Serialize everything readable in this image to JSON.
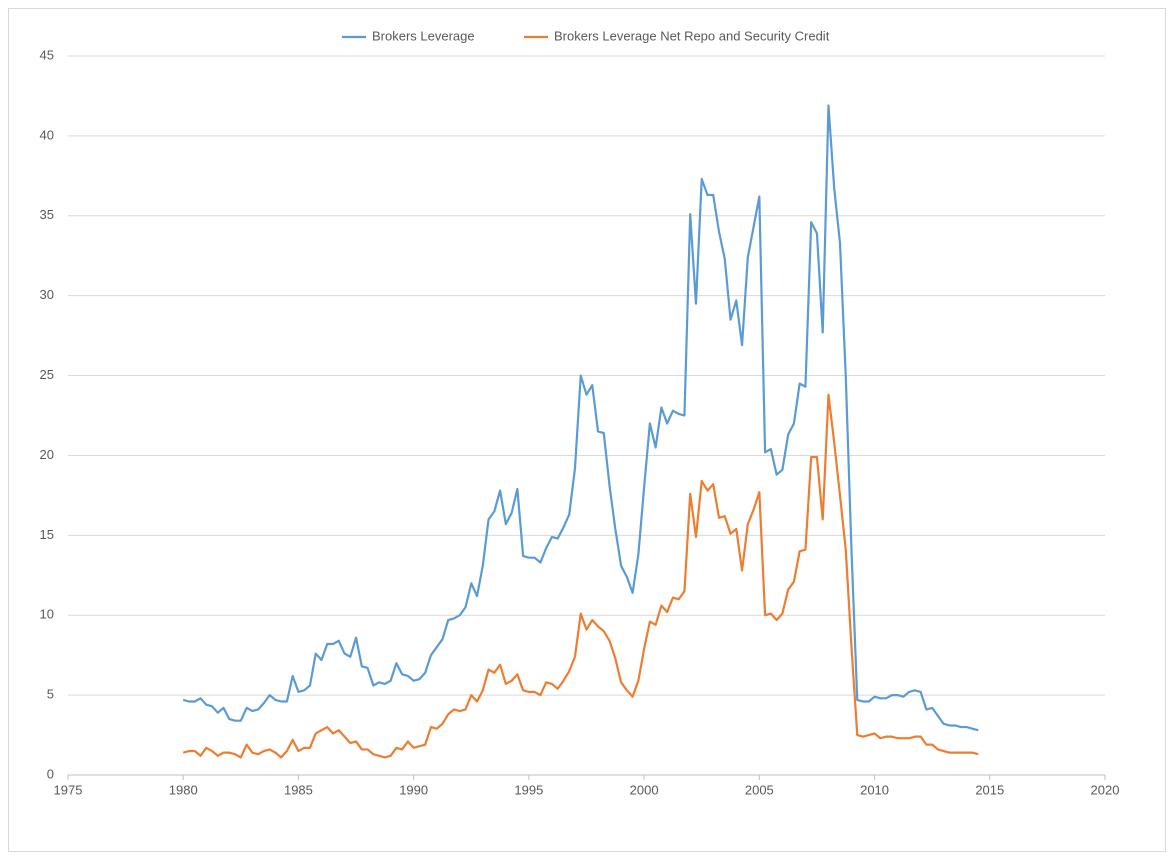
{
  "chart_data": {
    "type": "line",
    "x": [
      1980,
      1980.25,
      1980.5,
      1980.75,
      1981,
      1981.25,
      1981.5,
      1981.75,
      1982,
      1982.25,
      1982.5,
      1982.75,
      1983,
      1983.25,
      1983.5,
      1983.75,
      1984,
      1984.25,
      1984.5,
      1984.75,
      1985,
      1985.25,
      1985.5,
      1985.75,
      1986,
      1986.25,
      1986.5,
      1986.75,
      1987,
      1987.25,
      1987.5,
      1987.75,
      1988,
      1988.25,
      1988.5,
      1988.75,
      1989,
      1989.25,
      1989.5,
      1989.75,
      1990,
      1990.25,
      1990.5,
      1990.75,
      1991,
      1991.25,
      1991.5,
      1991.75,
      1992,
      1992.25,
      1992.5,
      1992.75,
      1993,
      1993.25,
      1993.5,
      1993.75,
      1994,
      1994.25,
      1994.5,
      1994.75,
      1995,
      1995.25,
      1995.5,
      1995.75,
      1996,
      1996.25,
      1996.5,
      1996.75,
      1997,
      1997.25,
      1997.5,
      1997.75,
      1998,
      1998.25,
      1998.5,
      1998.75,
      1999,
      1999.25,
      1999.5,
      1999.75,
      2000,
      2000.25,
      2000.5,
      2000.75,
      2001,
      2001.25,
      2001.5,
      2001.75,
      2002,
      2002.25,
      2002.5,
      2002.75,
      2003,
      2003.25,
      2003.5,
      2003.75,
      2004,
      2004.25,
      2004.5,
      2004.75,
      2005,
      2005.25,
      2005.5,
      2005.75,
      2006,
      2006.25,
      2006.5,
      2006.75,
      2007,
      2007.25,
      2007.5,
      2007.75,
      2008,
      2008.25,
      2008.5,
      2008.75,
      2009,
      2009.25,
      2009.5,
      2009.75,
      2010,
      2010.25,
      2010.5,
      2010.75,
      2011,
      2011.25,
      2011.5,
      2011.75,
      2012,
      2012.25,
      2012.5,
      2012.75,
      2013,
      2013.25,
      2013.5,
      2013.75,
      2014,
      2014.25,
      2014.5
    ],
    "series": [
      {
        "name": "Brokers Leverage",
        "color": "#5b9bd5",
        "values": [
          4.7,
          4.6,
          4.6,
          4.8,
          4.4,
          4.3,
          3.9,
          4.2,
          3.5,
          3.4,
          3.4,
          4.2,
          4.0,
          4.1,
          4.5,
          5.0,
          4.7,
          4.6,
          4.6,
          6.2,
          5.2,
          5.3,
          5.6,
          7.6,
          7.2,
          8.2,
          8.2,
          8.4,
          7.6,
          7.4,
          8.6,
          6.8,
          6.7,
          5.6,
          5.8,
          5.7,
          5.9,
          7.0,
          6.3,
          6.2,
          5.9,
          6.0,
          6.4,
          7.5,
          8.0,
          8.5,
          9.7,
          9.8,
          10.0,
          10.5,
          12.0,
          11.2,
          13.1,
          16.0,
          16.5,
          17.8,
          15.7,
          16.4,
          17.9,
          13.7,
          13.6,
          13.6,
          13.3,
          14.2,
          14.9,
          14.8,
          15.5,
          16.3,
          19.2,
          25.0,
          23.8,
          24.4,
          21.5,
          21.4,
          18.1,
          15.4,
          13.1,
          12.4,
          11.4,
          13.8,
          18.0,
          22.0,
          20.5,
          23.0,
          22.0,
          22.8,
          22.6,
          22.5,
          35.1,
          29.5,
          37.3,
          36.3,
          36.3,
          34.0,
          32.3,
          28.5,
          29.7,
          26.9,
          32.4,
          34.3,
          36.2,
          20.2,
          20.4,
          18.8,
          19.1,
          21.3,
          22.0,
          24.5,
          24.3,
          34.6,
          33.9,
          27.7,
          41.9,
          36.7,
          33.3,
          25.0,
          14.0,
          4.7,
          4.6,
          4.6,
          4.9,
          4.8,
          4.8,
          5.0,
          5.0,
          4.9,
          5.2,
          5.3,
          5.2,
          4.1,
          4.2,
          3.7,
          3.2,
          3.1,
          3.1,
          3.0,
          3.0,
          2.9,
          2.8
        ]
      },
      {
        "name": "Brokers Leverage Net Repo and Security Credit",
        "color": "#ed7d31",
        "values": [
          1.4,
          1.5,
          1.5,
          1.2,
          1.7,
          1.5,
          1.2,
          1.4,
          1.4,
          1.3,
          1.1,
          1.9,
          1.4,
          1.3,
          1.5,
          1.6,
          1.4,
          1.1,
          1.5,
          2.2,
          1.5,
          1.7,
          1.7,
          2.6,
          2.8,
          3.0,
          2.6,
          2.8,
          2.4,
          2.0,
          2.1,
          1.6,
          1.6,
          1.3,
          1.2,
          1.1,
          1.2,
          1.7,
          1.6,
          2.1,
          1.7,
          1.8,
          1.9,
          3.0,
          2.9,
          3.2,
          3.8,
          4.1,
          4.0,
          4.1,
          5.0,
          4.6,
          5.3,
          6.6,
          6.4,
          6.9,
          5.7,
          5.9,
          6.3,
          5.3,
          5.2,
          5.2,
          5.0,
          5.8,
          5.7,
          5.4,
          5.9,
          6.5,
          7.4,
          10.1,
          9.1,
          9.7,
          9.3,
          9.0,
          8.4,
          7.3,
          5.8,
          5.3,
          4.9,
          5.9,
          7.9,
          9.6,
          9.4,
          10.6,
          10.2,
          11.1,
          11.0,
          11.5,
          17.6,
          14.9,
          18.4,
          17.8,
          18.2,
          16.1,
          16.2,
          15.1,
          15.4,
          12.8,
          15.7,
          16.6,
          17.7,
          10.0,
          10.1,
          9.7,
          10.1,
          11.6,
          12.1,
          14.0,
          14.1,
          19.9,
          19.9,
          16.0,
          23.8,
          20.8,
          17.5,
          14.1,
          8.0,
          2.5,
          2.4,
          2.5,
          2.6,
          2.3,
          2.4,
          2.4,
          2.3,
          2.3,
          2.3,
          2.4,
          2.4,
          1.9,
          1.9,
          1.6,
          1.5,
          1.4,
          1.4,
          1.4,
          1.4,
          1.4,
          1.3
        ]
      }
    ],
    "xlim": [
      1975,
      2020
    ],
    "xticks": [
      1975,
      1980,
      1985,
      1990,
      1995,
      2000,
      2005,
      2010,
      2015,
      2020
    ],
    "ylim": [
      0,
      45
    ],
    "yticks": [
      0,
      5,
      10,
      15,
      20,
      25,
      30,
      35,
      40,
      45
    ],
    "grid": true,
    "legend": "top"
  }
}
